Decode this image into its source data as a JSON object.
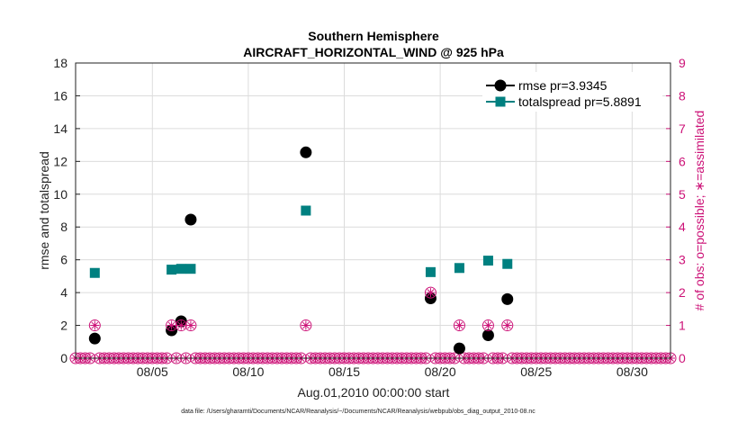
{
  "chart_data": {
    "type": "scatter",
    "title": "Southern Hemisphere",
    "subtitle": "AIRCRAFT_HORIZONTAL_WIND @ 925 hPa",
    "xlabel": "Aug.01,2010 00:00:00 start",
    "ylabel": "rmse and totalspread",
    "y2label": "# of obs: o=possible; ∗=assimilated",
    "footnote": "data file: /Users/gharamti/Documents/NCAR/Reanalysis/~/Documents/NCAR/Reanalysis/webpub/obs_diag_output_2010-08.nc",
    "xlim": [
      1,
      32
    ],
    "ylim": [
      0,
      18
    ],
    "y2lim": [
      0,
      9
    ],
    "xticks": [
      {
        "value": 5,
        "label": "08/05"
      },
      {
        "value": 10,
        "label": "08/10"
      },
      {
        "value": 15,
        "label": "08/15"
      },
      {
        "value": 20,
        "label": "08/20"
      },
      {
        "value": 25,
        "label": "08/25"
      },
      {
        "value": 30,
        "label": "08/30"
      }
    ],
    "yticks": [
      "0",
      "2",
      "4",
      "6",
      "8",
      "10",
      "12",
      "14",
      "16",
      "18"
    ],
    "y2ticks": [
      "0",
      "1",
      "2",
      "3",
      "4",
      "5",
      "6",
      "7",
      "8",
      "9"
    ],
    "grid": true,
    "legend_position": "top-right",
    "colors": {
      "rmse": "#000000",
      "totalspread": "#008080",
      "obs": "#cc1177"
    },
    "series": [
      {
        "name": "rmse pr=3.9345",
        "marker": "circle",
        "axis": "left",
        "x": [
          2,
          6,
          6.5,
          7,
          13,
          19.5,
          21,
          22.5,
          23.5
        ],
        "y": [
          1.2,
          1.7,
          2.25,
          8.45,
          12.55,
          3.65,
          0.6,
          1.4,
          3.6
        ]
      },
      {
        "name": "totalspread pr=5.8891",
        "marker": "square",
        "axis": "left",
        "x": [
          2,
          6,
          6.5,
          7,
          13,
          19.5,
          21,
          22.5,
          23.5
        ],
        "y": [
          5.2,
          5.4,
          5.45,
          5.45,
          9.0,
          5.25,
          5.5,
          5.95,
          5.75
        ]
      },
      {
        "marker": "obs-possible",
        "axis": "right",
        "x": [
          2,
          6,
          6.5,
          7,
          13,
          19.5,
          21,
          22.5,
          23.5
        ],
        "y": [
          1,
          1,
          1,
          1,
          1,
          2,
          1,
          1,
          1
        ]
      },
      {
        "marker": "obs-assimilated",
        "axis": "right",
        "x": [
          2,
          6,
          6.5,
          7,
          13,
          19.5,
          21,
          22.5,
          23.5
        ],
        "y": [
          1,
          1,
          1,
          1,
          1,
          2,
          1,
          1,
          1
        ]
      }
    ]
  }
}
